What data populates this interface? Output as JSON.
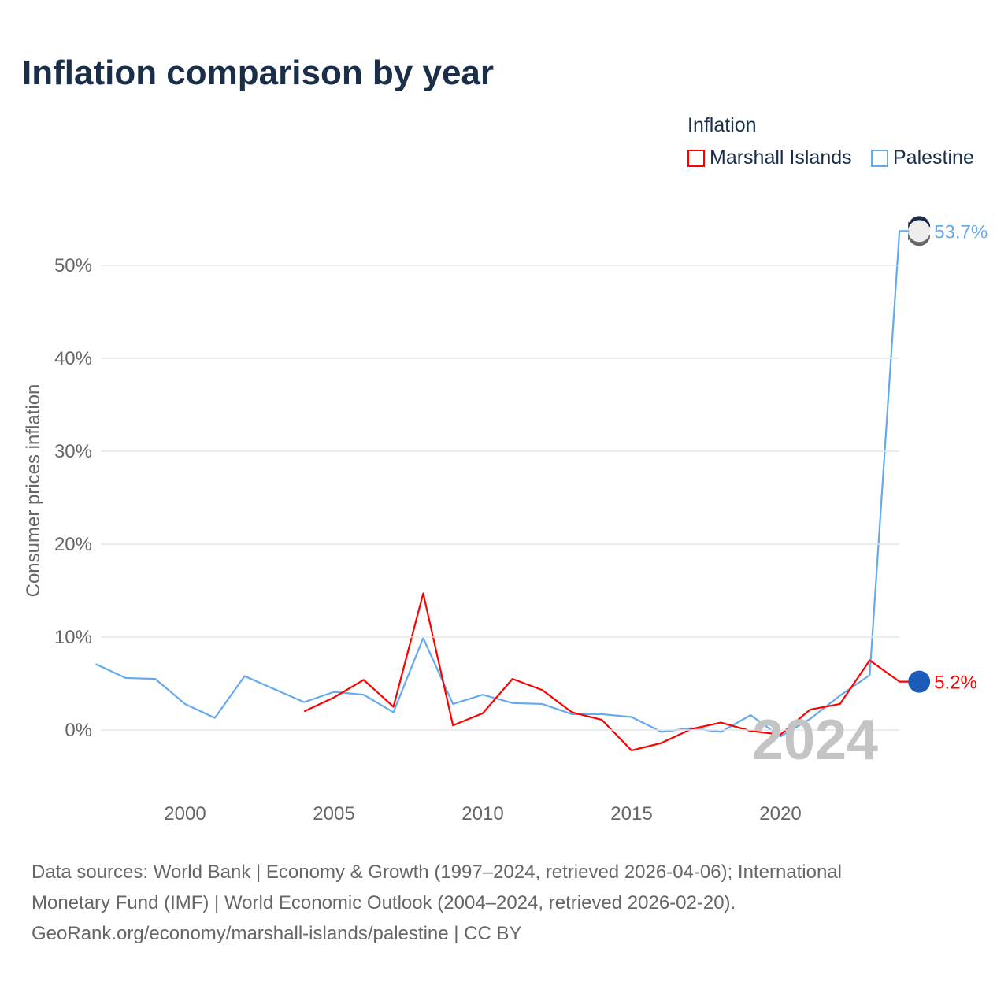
{
  "title": "Inflation comparison by year",
  "legend": {
    "title": "Inflation",
    "items": [
      {
        "name": "Marshall Islands",
        "color": "#ff0000"
      },
      {
        "name": "Palestine",
        "color": "#66aaee"
      }
    ]
  },
  "watermark_year": "2024",
  "footer": {
    "line1": "Data sources: World Bank | Economy & Growth (1997–2024, retrieved 2026-04-06); International",
    "line2": "Monetary Fund (IMF) | World Economic Outlook (2004–2024, retrieved 2026-02-20).",
    "line3": "GeoRank.org/economy/marshall-islands/palestine | CC BY"
  },
  "chart_data": {
    "type": "line",
    "title": "Inflation comparison by year",
    "xlabel": "",
    "ylabel": "Consumer prices inflation",
    "xlim": [
      1997,
      2024
    ],
    "ylim": [
      -4,
      54
    ],
    "xticks": [
      2000,
      2005,
      2010,
      2015,
      2020
    ],
    "yticks": [
      0,
      10,
      20,
      30,
      40,
      50
    ],
    "ytick_labels": [
      "0%",
      "10%",
      "20%",
      "30%",
      "40%",
      "50%"
    ],
    "grid": true,
    "legend_position": "top-right",
    "series": [
      {
        "name": "Marshall Islands",
        "color": "#ff0000",
        "end_label": "5.2%",
        "x": [
          2004,
          2005,
          2006,
          2007,
          2008,
          2009,
          2010,
          2011,
          2012,
          2013,
          2014,
          2015,
          2016,
          2017,
          2018,
          2019,
          2020,
          2021,
          2022,
          2023,
          2024
        ],
        "values": [
          2.0,
          3.5,
          5.4,
          2.5,
          14.7,
          0.5,
          1.8,
          5.5,
          4.3,
          1.9,
          1.1,
          -2.2,
          -1.4,
          0.1,
          0.8,
          -0.1,
          -0.5,
          2.2,
          2.8,
          7.5,
          5.2
        ]
      },
      {
        "name": "Palestine",
        "color": "#66aaee",
        "end_label": "53.7%",
        "x": [
          1997,
          1998,
          1999,
          2000,
          2001,
          2002,
          2003,
          2004,
          2005,
          2006,
          2007,
          2008,
          2009,
          2010,
          2011,
          2012,
          2013,
          2014,
          2015,
          2016,
          2017,
          2018,
          2019,
          2020,
          2021,
          2022,
          2023,
          2024
        ],
        "values": [
          7.1,
          5.6,
          5.5,
          2.8,
          1.3,
          5.8,
          4.4,
          3.0,
          4.1,
          3.8,
          1.9,
          9.9,
          2.8,
          3.8,
          2.9,
          2.8,
          1.7,
          1.7,
          1.4,
          -0.2,
          0.2,
          -0.2,
          1.6,
          -0.7,
          1.2,
          3.7,
          5.9,
          53.7
        ]
      }
    ]
  }
}
